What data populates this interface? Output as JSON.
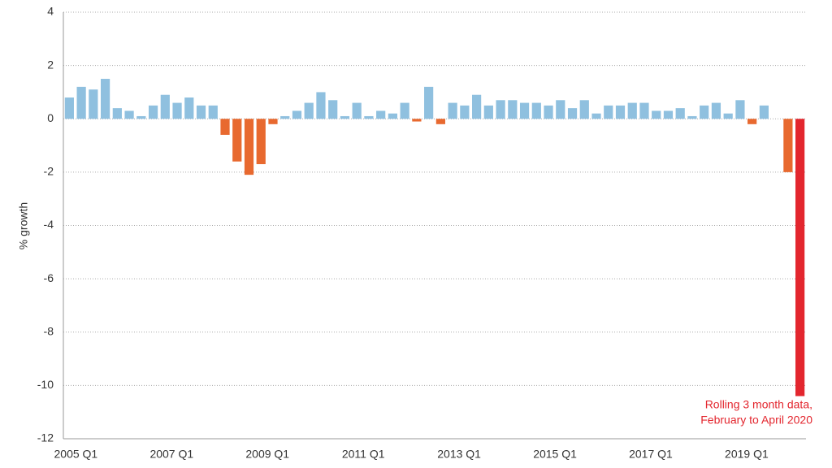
{
  "chart_data": {
    "type": "bar",
    "y_label": "% growth",
    "categories": [
      "2005 Q1",
      null,
      null,
      null,
      null,
      null,
      null,
      null,
      "2007 Q1",
      null,
      null,
      null,
      null,
      null,
      null,
      null,
      "2009 Q1",
      null,
      null,
      null,
      null,
      null,
      null,
      null,
      "2011 Q1",
      null,
      null,
      null,
      null,
      null,
      null,
      null,
      "2013 Q1",
      null,
      null,
      null,
      null,
      null,
      null,
      null,
      "2015 Q1",
      null,
      null,
      null,
      null,
      null,
      null,
      null,
      "2017 Q1",
      null,
      null,
      null,
      null,
      null,
      null,
      null,
      "2019 Q1",
      null,
      null,
      null,
      null,
      null
    ],
    "values": [
      0.8,
      1.2,
      1.1,
      1.5,
      0.4,
      0.3,
      0.1,
      0.5,
      0.9,
      0.6,
      0.8,
      0.5,
      0.5,
      -0.6,
      -1.6,
      -2.1,
      -1.7,
      -0.2,
      0.1,
      0.3,
      0.6,
      1.0,
      0.7,
      0.1,
      0.6,
      0.1,
      0.3,
      0.2,
      0.6,
      -0.1,
      1.2,
      -0.2,
      0.6,
      0.5,
      0.9,
      0.5,
      0.7,
      0.7,
      0.6,
      0.6,
      0.5,
      0.7,
      0.4,
      0.7,
      0.2,
      0.5,
      0.5,
      0.6,
      0.6,
      0.3,
      0.3,
      0.4,
      0.1,
      0.5,
      0.6,
      0.2,
      0.7,
      -0.2,
      0.5,
      0,
      -2.0,
      -10.4
    ],
    "positive_color": "#8fc0df",
    "negative_color": "#e8692f",
    "highlight_color": "#e3262e",
    "highlight_index": 61,
    "annotation": [
      "Rolling 3 month data,",
      "February to April 2020"
    ],
    "ylim": [
      -12,
      4
    ],
    "yticks": [
      -12,
      -10,
      -8,
      -6,
      -4,
      -2,
      0,
      2,
      4
    ],
    "grid": true
  }
}
